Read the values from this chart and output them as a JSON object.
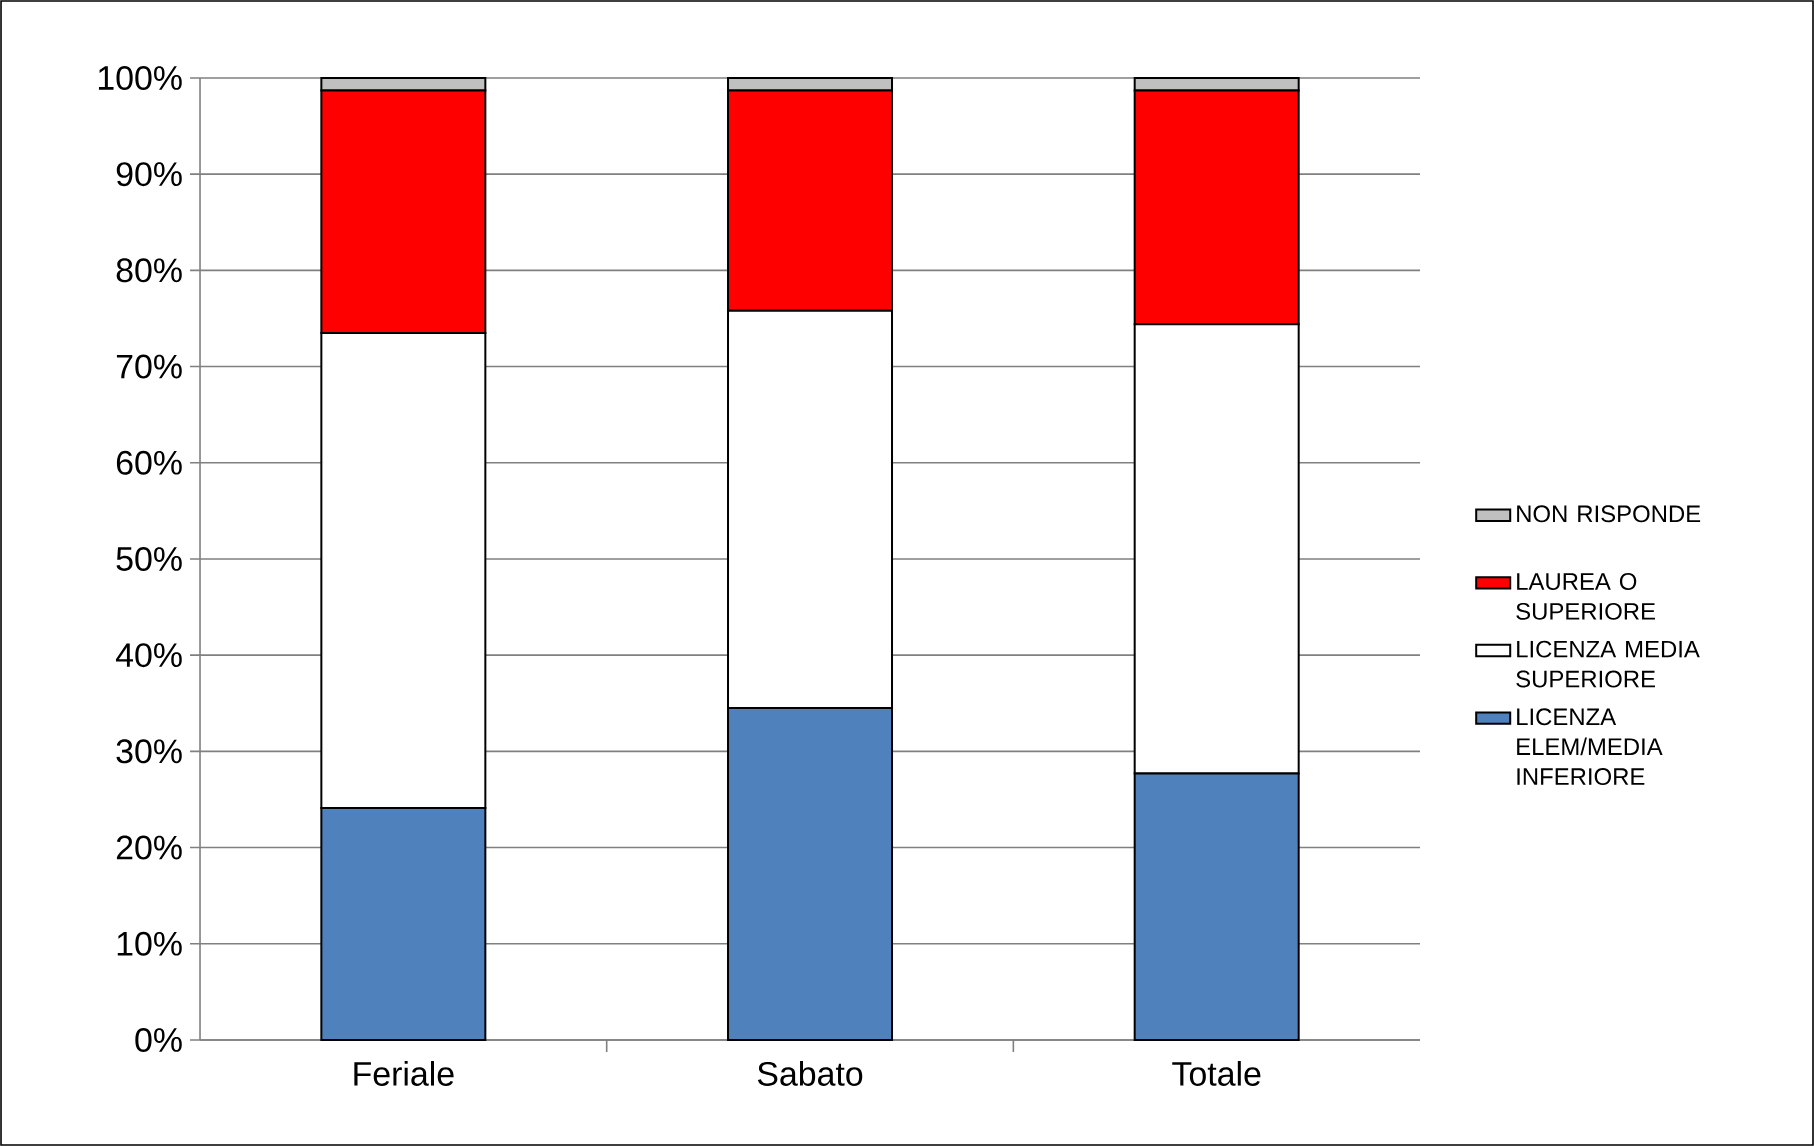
{
  "chart_data": {
    "type": "bar",
    "stacked": true,
    "categories": [
      "Feriale",
      "Sabato",
      "Totale"
    ],
    "series": [
      {
        "name": "LICENZA ELEM/MEDIA INFERIORE",
        "color": "#4f81bd",
        "values": [
          24.1,
          34.5,
          27.7
        ]
      },
      {
        "name": "LICENZA MEDIA SUPERIORE",
        "color": "#ffffff",
        "values": [
          49.4,
          41.3,
          46.7
        ]
      },
      {
        "name": "LAUREA O SUPERIORE",
        "color": "#ff0000",
        "values": [
          25.2,
          22.9,
          24.3
        ]
      },
      {
        "name": "NON RISPONDE",
        "color": "#c0c0c0",
        "values": [
          1.3,
          1.3,
          1.3
        ]
      }
    ],
    "ylim": [
      0,
      100
    ],
    "yticks": [
      {
        "value": 0,
        "label": "0%"
      },
      {
        "value": 10,
        "label": "10%"
      },
      {
        "value": 20,
        "label": "20%"
      },
      {
        "value": 30,
        "label": "30%"
      },
      {
        "value": 40,
        "label": "40%"
      },
      {
        "value": 50,
        "label": "50%"
      },
      {
        "value": 60,
        "label": "60%"
      },
      {
        "value": 70,
        "label": "70%"
      },
      {
        "value": 80,
        "label": "80%"
      },
      {
        "value": 90,
        "label": "90%"
      },
      {
        "value": 100,
        "label": "100%"
      }
    ],
    "grid": "y",
    "legend": "right"
  }
}
